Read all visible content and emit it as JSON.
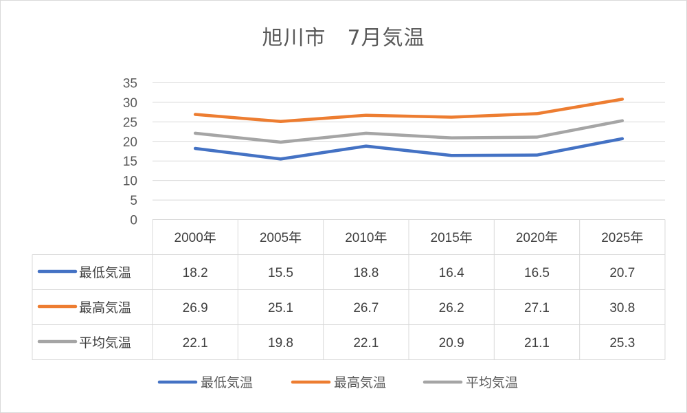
{
  "chart_data": {
    "type": "line",
    "title": "旭川市　7月気温",
    "categories": [
      "2000年",
      "2005年",
      "2010年",
      "2015年",
      "2020年",
      "2025年"
    ],
    "series": [
      {
        "name": "最低気温",
        "color": "#4472c4",
        "values": [
          18.2,
          15.5,
          18.8,
          16.4,
          16.5,
          20.7
        ],
        "labels": [
          "18.2",
          "15.5",
          "18.8",
          "16.4",
          "16.5",
          "20.7"
        ]
      },
      {
        "name": "最高気温",
        "color": "#ed7d31",
        "values": [
          26.9,
          25.1,
          26.7,
          26.2,
          27.1,
          30.8
        ],
        "labels": [
          "26.9",
          "25.1",
          "26.7",
          "26.2",
          "27.1",
          "30.8"
        ]
      },
      {
        "name": "平均気温",
        "color": "#a5a5a5",
        "values": [
          22.1,
          19.8,
          22.1,
          20.9,
          21.1,
          25.3
        ],
        "labels": [
          "22.1",
          "19.8",
          "22.1",
          "20.9",
          "21.1",
          "25.3"
        ]
      }
    ],
    "ylim": [
      0,
      35
    ],
    "yticks": [
      "0",
      "5",
      "10",
      "15",
      "20",
      "25",
      "30",
      "35"
    ],
    "grid": true,
    "data_table": true,
    "legend": "bottom"
  }
}
